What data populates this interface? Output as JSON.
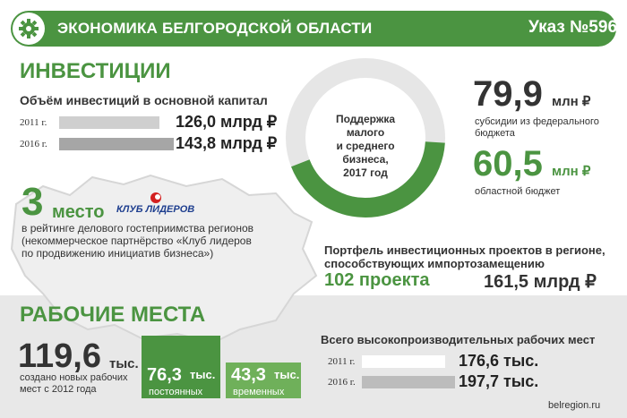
{
  "header": {
    "title": "ЭКОНОМИКА БЕЛГОРОДСКОЙ ОБЛАСТИ",
    "decree": "Указ №596",
    "icon": "gear-icon"
  },
  "investments": {
    "title": "ИНВЕСТИЦИИ",
    "subtitle": "Объём инвестиций в основной капитал",
    "rows": [
      {
        "year": "2011 г.",
        "value": "126,0 млрд ₽",
        "fraction": 0.876
      },
      {
        "year": "2016 г.",
        "value": "143,8 млрд ₽",
        "fraction": 1.0
      }
    ]
  },
  "rating": {
    "place_num": "3",
    "place_word": "место",
    "logo_text": "КЛУБ ЛИДЕРОВ",
    "desc1": "в рейтинге делового гостеприимства регионов",
    "desc2": "(некоммерческое партнёрство «Клуб лидеров",
    "desc3": "по продвижению инициатив бизнеса»)"
  },
  "support": {
    "center1": "Поддержка",
    "center2": "малого",
    "center3": "и среднего",
    "center4": "бизнеса,",
    "center5": "2017 год",
    "federal_num": "79,9",
    "federal_unit": "млн ₽",
    "federal_label1": "субсидии из федерального",
    "federal_label2": "бюджета",
    "regional_num": "60,5",
    "regional_unit": "млн ₽",
    "regional_label": "областной бюджет",
    "federal_share": 0.569
  },
  "portfolio": {
    "title1": "Портфель инвестиционных проектов в регионе,",
    "title2": "способствующих импортозамещению",
    "projects": "102 проекта",
    "amount": "161,5 млрд ₽"
  },
  "jobs": {
    "title": "РАБОЧИЕ МЕСТА",
    "created_num": "119,6",
    "created_unit": "тыс.",
    "created_label1": "создано новых рабочих",
    "created_label2": "мест с 2012 года",
    "permanent_num": "76,3",
    "permanent_unit": "тыс.",
    "permanent_label": "постоянных",
    "temporary_num": "43,3",
    "temporary_unit": "тыс.",
    "temporary_label": "временных",
    "hp_title": "Всего высокопроизводительных рабочих мест",
    "hp_rows": [
      {
        "year": "2011 г.",
        "value": "176,6 тыс.",
        "fraction": 0.893
      },
      {
        "year": "2016 г.",
        "value": "197,7 тыс.",
        "fraction": 1.0
      }
    ]
  },
  "footer": {
    "site": "belregion.ru"
  },
  "colors": {
    "green": "#4b9441",
    "light_green": "#6fb05a",
    "gray_bar": "#a6a6a6",
    "light_bar": "#cfcfcf"
  }
}
